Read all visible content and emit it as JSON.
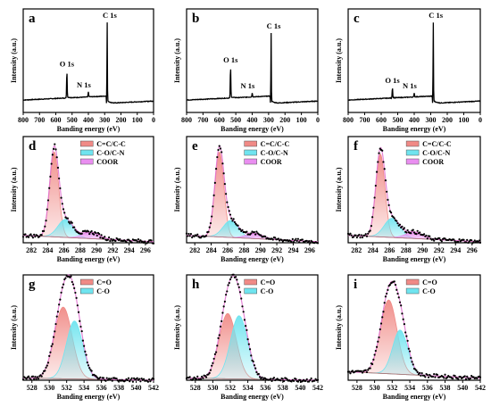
{
  "chart_data": [
    {
      "id": "a",
      "type": "line",
      "kind": "survey",
      "panel_label": "a",
      "xlabel": "Banding energy (eV)",
      "ylabel": "Intensity (a.u.)",
      "xlim": [
        800,
        0
      ],
      "xreversed": true,
      "xticks": [
        800,
        700,
        600,
        500,
        400,
        300,
        200,
        100,
        0
      ],
      "peaks": [
        {
          "label": "O 1s",
          "x": 532,
          "height": 0.26
        },
        {
          "label": "N 1s",
          "x": 400,
          "height": 0.05
        },
        {
          "label": "C 1s",
          "x": 284.8,
          "height": 0.78
        }
      ]
    },
    {
      "id": "b",
      "type": "line",
      "kind": "survey",
      "panel_label": "b",
      "xlabel": "Banding energy (eV)",
      "ylabel": "Intensity (a.u.)",
      "xlim": [
        800,
        0
      ],
      "xreversed": true,
      "xticks": [
        800,
        700,
        600,
        500,
        400,
        300,
        200,
        100,
        0
      ],
      "peaks": [
        {
          "label": "O 1s",
          "x": 532,
          "height": 0.3
        },
        {
          "label": "N 1s",
          "x": 400,
          "height": 0.04
        },
        {
          "label": "C 1s",
          "x": 284.8,
          "height": 0.68
        }
      ]
    },
    {
      "id": "c",
      "type": "line",
      "kind": "survey",
      "panel_label": "c",
      "xlabel": "Banding energy (eV)",
      "ylabel": "Intensity (a.u.)",
      "xlim": [
        800,
        0
      ],
      "xreversed": true,
      "xticks": [
        800,
        700,
        600,
        500,
        400,
        300,
        200,
        100,
        0
      ],
      "peaks": [
        {
          "label": "O 1s",
          "x": 532,
          "height": 0.1
        },
        {
          "label": "N 1s",
          "x": 400,
          "height": 0.04
        },
        {
          "label": "C 1s",
          "x": 284.8,
          "height": 0.78
        }
      ]
    },
    {
      "id": "d",
      "type": "line",
      "kind": "fit",
      "panel_label": "d",
      "xlabel": "Banding energy (eV)",
      "ylabel": "Intensity (a.u.)",
      "xlim": [
        281,
        297
      ],
      "xticks": [
        282,
        284,
        286,
        288,
        290,
        292,
        294,
        296
      ],
      "baseline": {
        "start": 0.07,
        "end": 0.01
      },
      "components": [
        {
          "name": "C=C/C-C",
          "center": 284.8,
          "height": 0.8,
          "fwhm": 1.3,
          "color": "#f08a86"
        },
        {
          "name": "C-O/C-N",
          "center": 286.2,
          "height": 0.17,
          "fwhm": 2.2,
          "color": "#6fe4ef"
        },
        {
          "name": "COOR",
          "center": 289.3,
          "height": 0.06,
          "fwhm": 2.4,
          "color": "#e98ef0"
        }
      ]
    },
    {
      "id": "e",
      "type": "line",
      "kind": "fit",
      "panel_label": "e",
      "xlabel": "Banding energy (eV)",
      "ylabel": "Intensity (a.u.)",
      "xlim": [
        281,
        297
      ],
      "xticks": [
        282,
        284,
        286,
        288,
        290,
        292,
        294,
        296
      ],
      "baseline": {
        "start": 0.07,
        "end": 0.01
      },
      "components": [
        {
          "name": "C=C/C-C",
          "center": 285.0,
          "height": 0.8,
          "fwhm": 1.3,
          "color": "#f08a86"
        },
        {
          "name": "C-O/C-N",
          "center": 286.4,
          "height": 0.16,
          "fwhm": 2.2,
          "color": "#6fe4ef"
        },
        {
          "name": "COOR",
          "center": 289.3,
          "height": 0.05,
          "fwhm": 2.4,
          "color": "#e98ef0"
        }
      ]
    },
    {
      "id": "f",
      "type": "line",
      "kind": "fit",
      "panel_label": "f",
      "xlabel": "Banding energy (eV)",
      "ylabel": "Intensity (a.u.)",
      "xlim": [
        281,
        297
      ],
      "xticks": [
        282,
        284,
        286,
        288,
        290,
        292,
        294,
        296
      ],
      "baseline": {
        "start": 0.07,
        "end": 0.01
      },
      "components": [
        {
          "name": "C=C/C-C",
          "center": 284.9,
          "height": 0.78,
          "fwhm": 1.3,
          "color": "#f08a86"
        },
        {
          "name": "C-O/C-N",
          "center": 286.3,
          "height": 0.18,
          "fwhm": 2.2,
          "color": "#6fe4ef"
        },
        {
          "name": "COOR",
          "center": 289.0,
          "height": 0.06,
          "fwhm": 2.4,
          "color": "#e98ef0"
        }
      ]
    },
    {
      "id": "g",
      "type": "line",
      "kind": "fit",
      "panel_label": "g",
      "xlabel": "Banding energy (eV)",
      "ylabel": "Intensity (a.u.)",
      "xlim": [
        527,
        542
      ],
      "xticks": [
        528,
        530,
        532,
        534,
        536,
        538,
        540,
        542
      ],
      "baseline": {
        "start": 0.02,
        "end": 0.0
      },
      "components": [
        {
          "name": "C=O",
          "center": 531.6,
          "height": 0.68,
          "fwhm": 2.4,
          "color": "#f08a86"
        },
        {
          "name": "C-O",
          "center": 532.9,
          "height": 0.55,
          "fwhm": 2.2,
          "color": "#6fe4ef"
        }
      ]
    },
    {
      "id": "h",
      "type": "line",
      "kind": "fit",
      "panel_label": "h",
      "xlabel": "Banding energy (eV)",
      "ylabel": "Intensity (a.u.)",
      "xlim": [
        527,
        542
      ],
      "xticks": [
        528,
        530,
        532,
        534,
        536,
        538,
        540,
        542
      ],
      "baseline": {
        "start": 0.02,
        "end": 0.0
      },
      "components": [
        {
          "name": "C=O",
          "center": 531.7,
          "height": 0.62,
          "fwhm": 2.3,
          "color": "#f08a86"
        },
        {
          "name": "C-O",
          "center": 533.0,
          "height": 0.6,
          "fwhm": 2.3,
          "color": "#6fe4ef"
        }
      ]
    },
    {
      "id": "i",
      "type": "line",
      "kind": "fit",
      "panel_label": "i",
      "xlabel": "Banding energy (eV)",
      "ylabel": "Intensity (a.u.)",
      "xlim": [
        527,
        542
      ],
      "xticks": [
        528,
        530,
        532,
        534,
        536,
        538,
        540,
        542
      ],
      "baseline": {
        "start": 0.08,
        "end": 0.02
      },
      "components": [
        {
          "name": "C=O",
          "center": 531.6,
          "height": 0.7,
          "fwhm": 2.2,
          "color": "#f08a86"
        },
        {
          "name": "C-O",
          "center": 532.9,
          "height": 0.42,
          "fwhm": 2.0,
          "color": "#6fe4ef"
        }
      ]
    }
  ]
}
